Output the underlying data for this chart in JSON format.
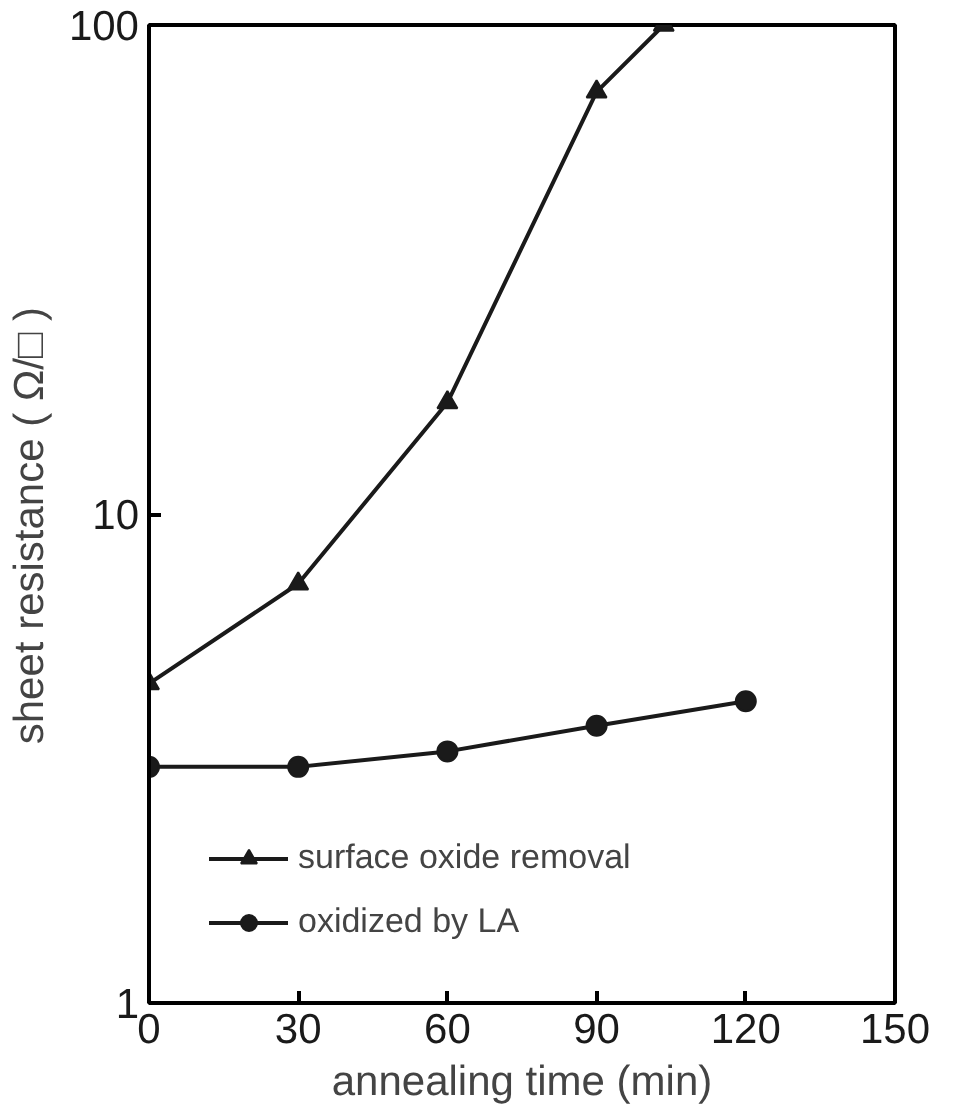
{
  "chart_data": {
    "type": "line",
    "xlabel": "annealing time (min)",
    "ylabel": "sheet  resistance (  Ω/□ )",
    "log": "y",
    "xlim": [
      0,
      150
    ],
    "xticks": [
      0,
      30,
      60,
      90,
      120,
      150
    ],
    "ylim": [
      1,
      100
    ],
    "yticks": [
      1,
      10,
      100
    ],
    "grid": false,
    "legend": "bottom left",
    "line_style": "solid",
    "series": [
      {
        "name": "surface oxide removal",
        "color": "#1a1a1a",
        "marker": "triangle",
        "x": [
          0,
          30,
          60,
          90,
          103.5
        ],
        "values": [
          4.5,
          7.2,
          16.9,
          73,
          100
        ]
      },
      {
        "name": "oxidized by LA",
        "color": "#1a1a1a",
        "marker": "circle",
        "x": [
          0,
          30,
          60,
          90,
          120
        ],
        "values": [
          3.04,
          3.04,
          3.27,
          3.69,
          4.14
        ]
      }
    ]
  }
}
